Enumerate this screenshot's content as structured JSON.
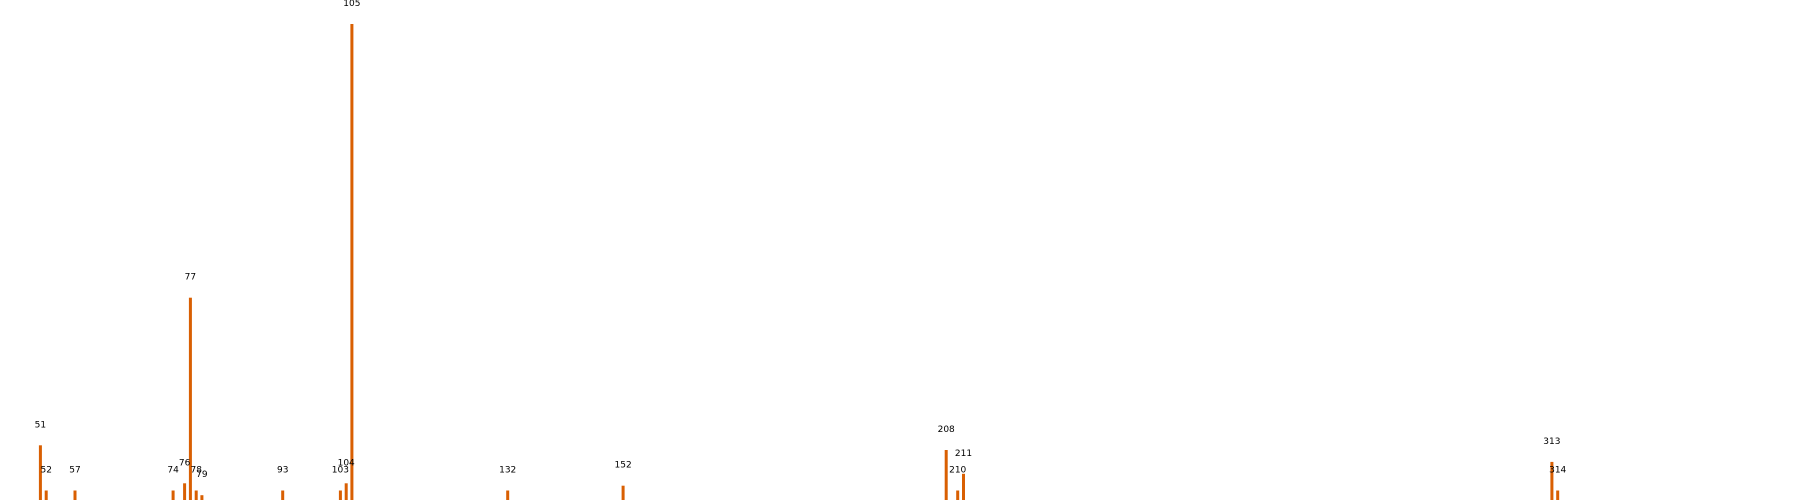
{
  "chart_data": {
    "type": "bar",
    "title": "",
    "xlabel": "",
    "ylabel": "",
    "xlim": [
      44,
      356
    ],
    "ylim": [
      0,
      100
    ],
    "grid": false,
    "legend": "none",
    "color": "#d95f02",
    "series": [
      {
        "points": [
          {
            "x": 51,
            "y": 11.5,
            "label": "51"
          },
          {
            "x": 52,
            "y": 2.0,
            "label": "52"
          },
          {
            "x": 57,
            "y": 2.0,
            "label": "57"
          },
          {
            "x": 74,
            "y": 2.0,
            "label": "74"
          },
          {
            "x": 76,
            "y": 3.5,
            "label": "76"
          },
          {
            "x": 77,
            "y": 42.5,
            "label": "77"
          },
          {
            "x": 78,
            "y": 2.0,
            "label": "78"
          },
          {
            "x": 79,
            "y": 1.0,
            "label": "79"
          },
          {
            "x": 93,
            "y": 2.0,
            "label": "93"
          },
          {
            "x": 103,
            "y": 2.0,
            "label": "103"
          },
          {
            "x": 104,
            "y": 3.5,
            "label": "104"
          },
          {
            "x": 105,
            "y": 100,
            "label": "105"
          },
          {
            "x": 132,
            "y": 2.0,
            "label": "132"
          },
          {
            "x": 152,
            "y": 3.0,
            "label": "152"
          },
          {
            "x": 208,
            "y": 10.5,
            "label": "208"
          },
          {
            "x": 210,
            "y": 2.0,
            "label": "210"
          },
          {
            "x": 211,
            "y": 5.5,
            "label": "211"
          },
          {
            "x": 313,
            "y": 8.0,
            "label": "313"
          },
          {
            "x": 314,
            "y": 2.0,
            "label": "314"
          }
        ]
      }
    ]
  }
}
